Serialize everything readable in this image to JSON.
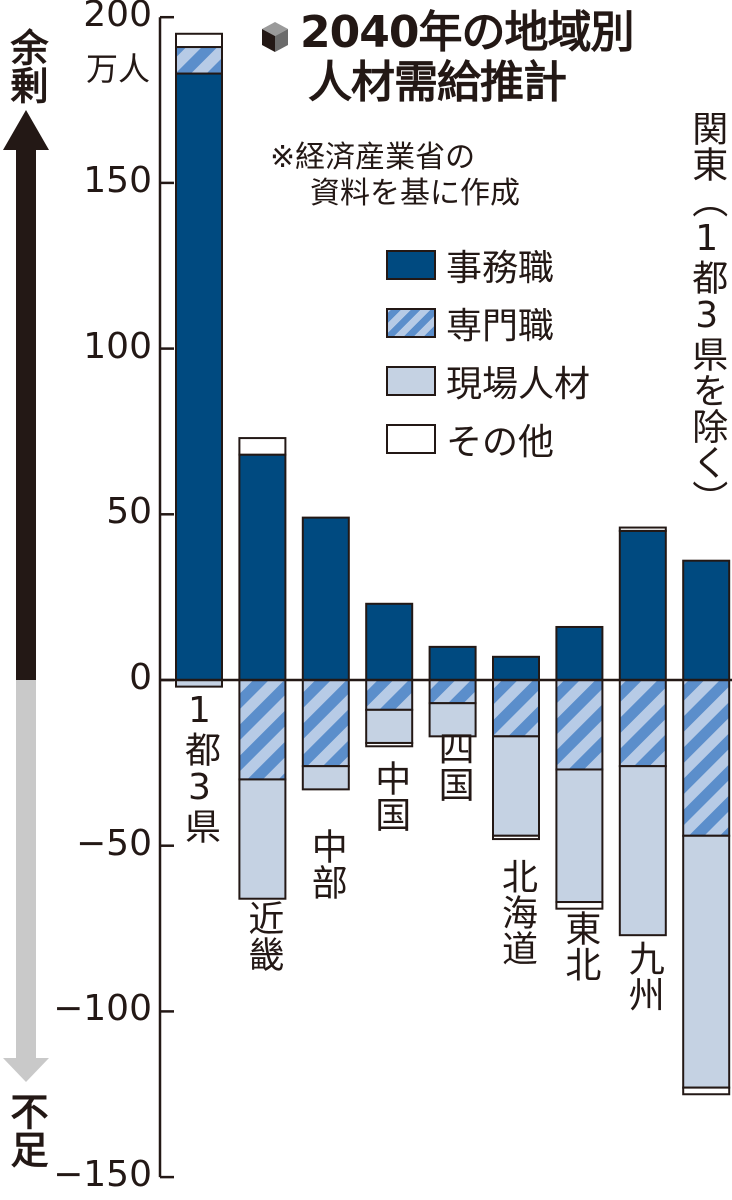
{
  "header": {
    "title_line1": "2040年の地域別",
    "title_line2": "人材需給推計",
    "note_line1": "※経済産業省の",
    "note_line2": "資料を基に作成",
    "unit": "万人",
    "side_top": "余剰",
    "side_bottom": "不足"
  },
  "legend": [
    {
      "key": "office",
      "label": "事務職",
      "color": "#004a80"
    },
    {
      "key": "specialist",
      "label": "専門職",
      "color": "#5b8ecb",
      "pattern": "diagonal-stripes",
      "stripe_light": "#b7cbe6"
    },
    {
      "key": "field",
      "label": "現場人材",
      "color": "#c5d2e3"
    },
    {
      "key": "other",
      "label": "その他",
      "color": "#ffffff"
    }
  ],
  "axis": {
    "ticks": [
      200,
      150,
      100,
      50,
      0,
      -50,
      -100,
      -150
    ],
    "tick_labels": [
      "200",
      "150",
      "100",
      "50",
      "0",
      "−50",
      "−100",
      "−150"
    ]
  },
  "chart_data": {
    "type": "bar",
    "stacked": true,
    "diverging": true,
    "title": "2040年の地域別人材需給推計",
    "subtitle": "※経済産業省の資料を基に作成",
    "xlabel": "",
    "ylabel": "万人 (余剰 ↑ / 不足 ↓)",
    "ylim": [
      -150,
      200
    ],
    "grid": false,
    "legend_position": "upper right (inside)",
    "categories": [
      "1都3県",
      "近畿",
      "中部",
      "中国",
      "四国",
      "北海道",
      "東北",
      "九州",
      "関東（1都3県を除く）"
    ],
    "series": [
      {
        "name": "事務職",
        "values": [
          183,
          68,
          49,
          23,
          10,
          7,
          16,
          45,
          36
        ]
      },
      {
        "name": "専門職",
        "values": [
          8,
          -30,
          -26,
          -9,
          -7,
          -17,
          -27,
          -26,
          -47
        ]
      },
      {
        "name": "現場人材",
        "values": [
          -2,
          -36,
          -7,
          -10,
          -10,
          -30,
          -40,
          -51,
          -76
        ]
      },
      {
        "name": "その他",
        "values": [
          4,
          5,
          0,
          -1,
          0,
          -1,
          -2,
          1,
          -2
        ]
      }
    ]
  }
}
